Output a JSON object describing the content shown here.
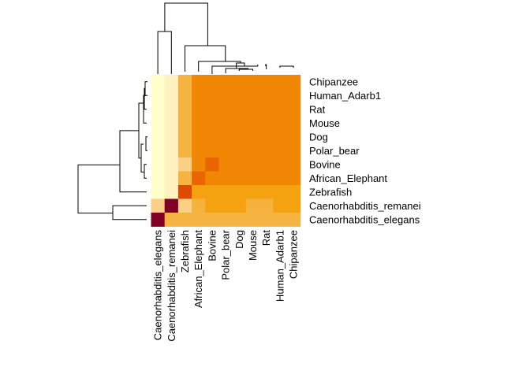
{
  "chart_data": {
    "type": "heatmap",
    "title": "",
    "xlabel": "",
    "ylabel": "",
    "legend": "none",
    "row_labels": [
      "Chipanzee",
      "Human_Adarb1",
      "Rat",
      "Mouse",
      "Dog",
      "Polar_bear",
      "Bovine",
      "African_Elephant",
      "Zebrafish",
      "Caenorhabditis_remanei",
      "Caenorhabditis_elegans"
    ],
    "col_labels": [
      "Caenorhabditis_elegans",
      "Caenorhabditis_remanei",
      "Zebrafish",
      "African_Elephant",
      "Bovine",
      "Polar_bear",
      "Dog",
      "Mouse",
      "Rat",
      "Human_Adarb1",
      "Chipanzee"
    ],
    "values": [
      [
        1,
        2,
        4,
        7,
        7,
        7,
        7,
        7,
        7,
        7,
        7
      ],
      [
        1,
        2,
        4,
        7,
        7,
        7,
        7,
        7,
        7,
        7,
        7
      ],
      [
        1,
        2,
        4,
        7,
        7,
        7,
        7,
        7,
        7,
        7,
        7
      ],
      [
        1,
        2,
        4,
        7,
        7,
        7,
        7,
        7,
        7,
        7,
        7
      ],
      [
        1,
        2,
        4,
        7,
        7,
        7,
        7,
        7,
        7,
        7,
        7
      ],
      [
        1,
        2,
        4,
        7,
        7,
        7,
        7,
        7,
        7,
        7,
        7
      ],
      [
        1,
        2,
        3,
        7,
        8,
        7,
        7,
        7,
        7,
        7,
        7
      ],
      [
        1,
        2,
        4,
        8,
        7,
        7,
        7,
        7,
        7,
        7,
        7
      ],
      [
        1,
        2,
        9,
        6,
        6,
        6,
        6,
        6,
        6,
        6,
        6
      ],
      [
        3,
        10,
        3,
        5,
        6,
        6,
        6,
        5,
        5,
        6,
        6
      ],
      [
        10,
        4,
        4,
        4,
        4,
        4,
        4,
        4,
        4,
        4,
        4
      ]
    ],
    "palette": {
      "1": "#FFFFCC",
      "2": "#FEF2C0",
      "3": "#FAD184",
      "4": "#F5B441",
      "5": "#F5B23C",
      "6": "#F4A20F",
      "7": "#F28705",
      "8": "#EA6504",
      "9": "#DE4A05",
      "10": "#800026"
    }
  }
}
